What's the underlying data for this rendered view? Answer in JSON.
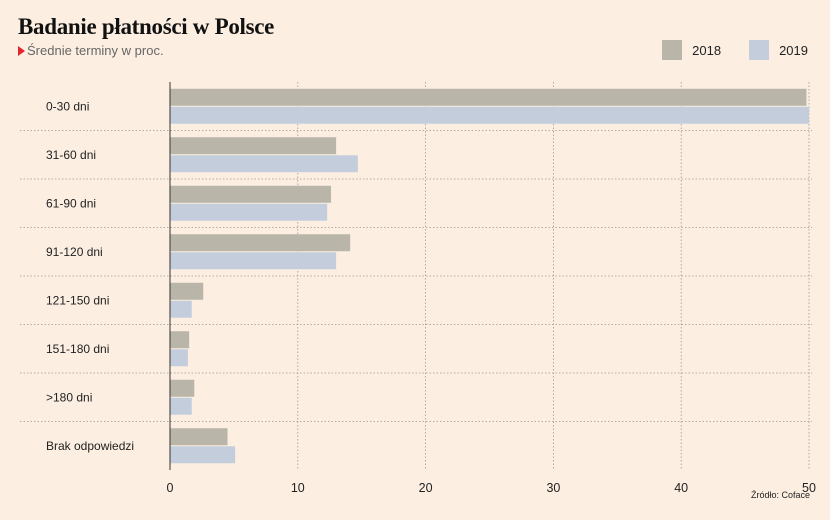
{
  "title": "Badanie płatności w Polsce",
  "subtitle": "Średnie terminy w proc.",
  "source": "Źródło: Coface",
  "colors": {
    "background": "#fcefe2",
    "series_2018": "#bab5a9",
    "series_2019": "#c3cddc",
    "marker": "#e3262c"
  },
  "chart_data": {
    "type": "bar",
    "orientation": "horizontal",
    "title": "Badanie płatności w Polsce",
    "subtitle": "Średnie terminy w proc.",
    "categories": [
      "0-30 dni",
      "31-60 dni",
      "61-90 dni",
      "91-120 dni",
      "121-150 dni",
      "151-180 dni",
      ">180 dni",
      "Brak odpowiedzi"
    ],
    "series": [
      {
        "name": "2018",
        "values": [
          49.8,
          13.0,
          12.6,
          14.1,
          2.6,
          1.5,
          1.9,
          4.5
        ]
      },
      {
        "name": "2019",
        "values": [
          50.0,
          14.7,
          12.3,
          13.0,
          1.7,
          1.4,
          1.7,
          5.1
        ]
      }
    ],
    "xlim": [
      0,
      50
    ],
    "xticks": [
      "0",
      "10",
      "20",
      "30",
      "40",
      "50"
    ],
    "xlabel": "",
    "ylabel": "",
    "grid": true,
    "legend_position": "top-right"
  }
}
